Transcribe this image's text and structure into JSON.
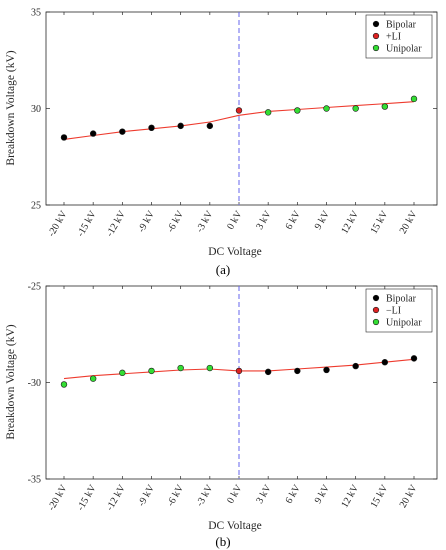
{
  "colors": {
    "bipolar": "#000000",
    "li": "#dd2222",
    "unipolar": "#33dd33",
    "fit": "#ee3b2e",
    "divider": "#6666ee"
  },
  "chart_data": [
    {
      "type": "scatter",
      "panel_label": "(a)",
      "xlabel": "DC Voltage",
      "ylabel": "Breakdown Voltage (kV)",
      "categories": [
        "-20 kV",
        "-15 kV",
        "-12 kV",
        "-9 kV",
        "-6 kV",
        "-3 kV",
        "0 kV",
        "3 kV",
        "6 kV",
        "9 kV",
        "12 kV",
        "15 kV",
        "20 kV"
      ],
      "ylim": [
        25,
        35
      ],
      "yticks": [
        "25",
        "30",
        "35"
      ],
      "divider_at": "0 kV",
      "legend_position": "top-right",
      "legend": [
        {
          "label": "Bipolar",
          "color": "#000000"
        },
        {
          "label": "+LI",
          "color": "#dd2222"
        },
        {
          "label": "Unipolar",
          "color": "#33dd33"
        }
      ],
      "series": [
        {
          "name": "Bipolar",
          "color": "#000000",
          "x": [
            "-20 kV",
            "-15 kV",
            "-12 kV",
            "-9 kV",
            "-6 kV",
            "-3 kV"
          ],
          "values": [
            28.5,
            28.7,
            28.8,
            29.0,
            29.1,
            29.1
          ]
        },
        {
          "name": "+LI",
          "color": "#dd2222",
          "x": [
            "0 kV"
          ],
          "values": [
            29.9
          ]
        },
        {
          "name": "Unipolar",
          "color": "#33dd33",
          "x": [
            "3 kV",
            "6 kV",
            "9 kV",
            "12 kV",
            "15 kV",
            "20 kV"
          ],
          "values": [
            29.8,
            29.9,
            30.0,
            30.0,
            30.1,
            30.5
          ]
        }
      ],
      "fit": {
        "x": [
          "-20 kV",
          "-15 kV",
          "-12 kV",
          "-9 kV",
          "-6 kV",
          "-3 kV",
          "0 kV",
          "3 kV",
          "6 kV",
          "9 kV",
          "12 kV",
          "15 kV",
          "20 kV"
        ],
        "values": [
          28.4,
          28.6,
          28.8,
          28.95,
          29.1,
          29.3,
          29.65,
          29.85,
          29.95,
          30.05,
          30.15,
          30.25,
          30.35
        ]
      }
    },
    {
      "type": "scatter",
      "panel_label": "(b)",
      "xlabel": "DC Voltage",
      "ylabel": "Breakdown Voltage (kV)",
      "categories": [
        "-20 kV",
        "-15 kV",
        "-12 kV",
        "-9 kV",
        "-6 kV",
        "-3 kV",
        "0 kV",
        "3 kV",
        "6 kV",
        "9 kV",
        "12 kV",
        "15 kV",
        "20 kV"
      ],
      "ylim": [
        -35,
        -25
      ],
      "yticks": [
        "-35",
        "-30",
        "-25"
      ],
      "divider_at": "0 kV",
      "legend_position": "top-right",
      "legend": [
        {
          "label": "Bipolar",
          "color": "#000000"
        },
        {
          "label": "−LI",
          "color": "#dd2222"
        },
        {
          "label": "Unipolar",
          "color": "#33dd33"
        }
      ],
      "series": [
        {
          "name": "Unipolar",
          "color": "#33dd33",
          "x": [
            "-20 kV",
            "-15 kV",
            "-12 kV",
            "-9 kV",
            "-6 kV",
            "-3 kV"
          ],
          "values": [
            -30.1,
            -29.8,
            -29.5,
            -29.4,
            -29.25,
            -29.25
          ]
        },
        {
          "name": "−LI",
          "color": "#dd2222",
          "x": [
            "0 kV"
          ],
          "values": [
            -29.4
          ]
        },
        {
          "name": "Bipolar",
          "color": "#000000",
          "x": [
            "3 kV",
            "6 kV",
            "9 kV",
            "12 kV",
            "15 kV",
            "20 kV"
          ],
          "values": [
            -29.45,
            -29.4,
            -29.35,
            -29.15,
            -28.95,
            -28.75
          ]
        }
      ],
      "fit": {
        "x": [
          "-20 kV",
          "-15 kV",
          "-12 kV",
          "-9 kV",
          "-6 kV",
          "-3 kV",
          "0 kV",
          "3 kV",
          "6 kV",
          "9 kV",
          "12 kV",
          "15 kV",
          "20 kV"
        ],
        "values": [
          -29.8,
          -29.65,
          -29.55,
          -29.45,
          -29.35,
          -29.3,
          -29.4,
          -29.4,
          -29.3,
          -29.2,
          -29.1,
          -28.95,
          -28.8
        ]
      }
    }
  ]
}
